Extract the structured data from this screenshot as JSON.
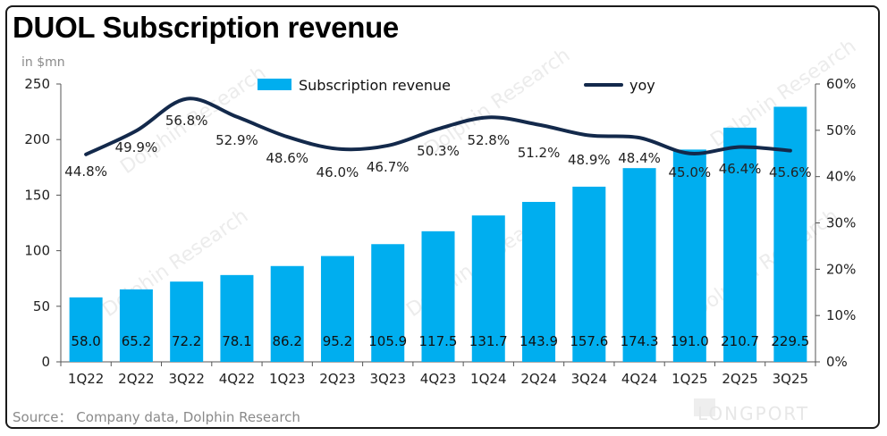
{
  "title": "DUOL Subscription revenue",
  "unit_label": "in $mn",
  "source": "Source： Company data, Dolphin Research",
  "watermark_text": "Dolphin Research",
  "brand_text": "LONGPORT",
  "colors": {
    "bar": "#00AEEF",
    "line": "#13294B"
  },
  "chart_data": {
    "type": "bar+line",
    "categories": [
      "1Q22",
      "2Q22",
      "3Q22",
      "4Q22",
      "1Q23",
      "2Q23",
      "3Q23",
      "4Q23",
      "1Q24",
      "2Q24",
      "3Q24",
      "4Q24",
      "1Q25",
      "2Q25",
      "3Q25"
    ],
    "series": [
      {
        "name": "Subscription revenue",
        "type": "bar",
        "axis": "left",
        "values": [
          58.0,
          65.2,
          72.2,
          78.1,
          86.2,
          95.2,
          105.9,
          117.5,
          131.7,
          143.9,
          157.6,
          174.3,
          191.0,
          210.7,
          229.5
        ],
        "labels": [
          "58.0",
          "65.2",
          "72.2",
          "78.1",
          "86.2",
          "95.2",
          "105.9",
          "117.5",
          "131.7",
          "143.9",
          "157.6",
          "174.3",
          "191.0",
          "210.7",
          "229.5"
        ]
      },
      {
        "name": "yoy",
        "type": "line",
        "axis": "right",
        "values": [
          44.8,
          49.9,
          56.8,
          52.9,
          48.6,
          46.0,
          46.7,
          50.3,
          52.8,
          51.2,
          48.9,
          48.4,
          45.0,
          46.4,
          45.6
        ],
        "labels": [
          "44.8%",
          "49.9%",
          "56.8%",
          "52.9%",
          "48.6%",
          "46.0%",
          "46.7%",
          "50.3%",
          "52.8%",
          "51.2%",
          "48.9%",
          "48.4%",
          "45.0%",
          "46.4%",
          "45.6%"
        ]
      }
    ],
    "ylim": [
      0,
      250
    ],
    "yticks": [
      "0",
      "50",
      "100",
      "150",
      "200",
      "250"
    ],
    "y2lim": [
      0,
      60
    ],
    "y2ticks": [
      "0%",
      "10%",
      "20%",
      "30%",
      "40%",
      "50%",
      "60%"
    ],
    "legend_position": "top",
    "grid": false
  }
}
